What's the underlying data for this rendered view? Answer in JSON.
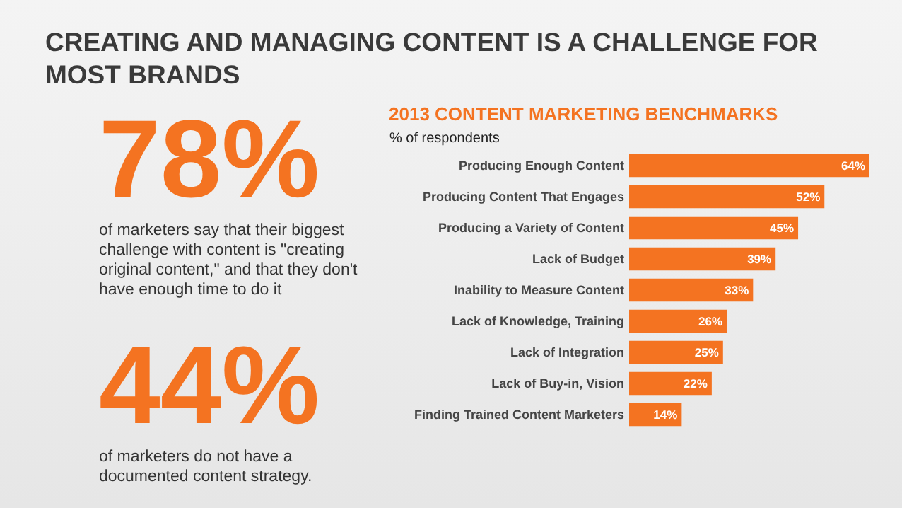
{
  "chart_data": {
    "type": "bar",
    "orientation": "horizontal",
    "title": "CREATING AND MANAGING CONTENT IS A CHALLENGE FOR MOST BRANDS",
    "subtitle": "2013 CONTENT MARKETING BENCHMARKS",
    "xlabel": "% of respondents",
    "categories": [
      "Producing Enough Content",
      "Producing Content That Engages",
      "Producing a Variety of Content",
      "Lack of Budget",
      "Inability to Measure Content",
      "Lack of Knowledge, Training",
      "Lack of Integration",
      "Lack of Buy-in, Vision",
      "Finding Trained Content Marketers"
    ],
    "values": [
      64,
      52,
      45,
      39,
      33,
      26,
      25,
      22,
      14
    ],
    "color": "#f47321",
    "value_labels": [
      "64%",
      "52%",
      "45%",
      "39%",
      "33%",
      "26%",
      "25%",
      "22%",
      "14%"
    ],
    "annotations": [
      "78%",
      "of marketers say that their biggest challenge with content is \"creating original content,\" and that they don't have enough time to do it",
      "44%",
      "of marketers do not have a documented content strategy."
    ]
  }
}
